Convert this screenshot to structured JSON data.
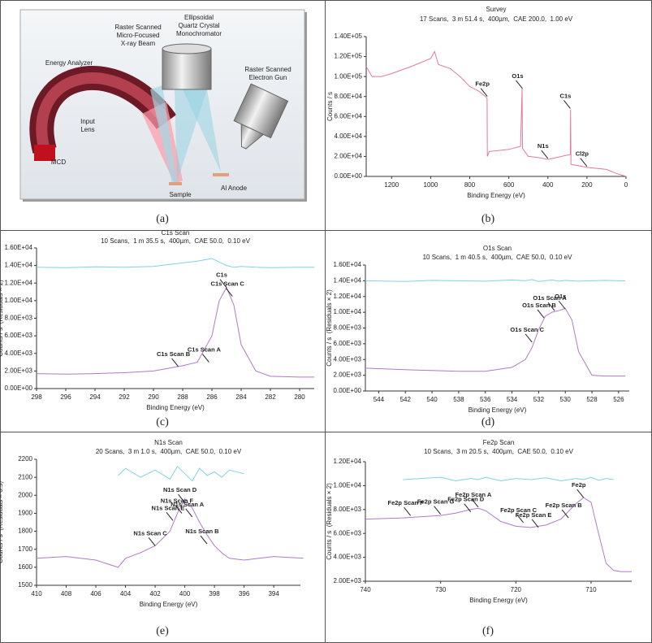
{
  "diagram": {
    "labels": [
      {
        "lines": [
          "Raster Scanned",
          "Micro-Focused",
          "X-ray Beam"
        ]
      },
      {
        "lines": [
          "Ellipsoidal",
          "Quartz Crystal",
          "Monochromator"
        ]
      },
      {
        "lines": [
          "Energy Analyzer"
        ]
      },
      {
        "lines": [
          "Raster Scanned",
          "Electron Gun"
        ]
      },
      {
        "lines": [
          "Input",
          "Lens"
        ]
      },
      {
        "lines": [
          "MCD"
        ]
      },
      {
        "lines": [
          "Sample"
        ]
      },
      {
        "lines": [
          "Al Anode"
        ]
      }
    ]
  },
  "panel_labels": [
    "(a)",
    "(b)",
    "(c)",
    "(d)",
    "(e)",
    "(f)"
  ],
  "chart_data": [
    {
      "type": "line",
      "title": "Survey",
      "subtitle": "17 Scans,  3 m 51.4 s,  400µm,  CAE 200.0,  1.00 eV",
      "x_label": "Binding Energy (eV)",
      "y_label": "Counts / s",
      "x": [
        1330,
        1300,
        1250,
        1200,
        1100,
        1000,
        980,
        960,
        900,
        850,
        800,
        750,
        720,
        711,
        710,
        700,
        650,
        600,
        540,
        532,
        530,
        500,
        450,
        400,
        285,
        284,
        282,
        250,
        200,
        100,
        50,
        0
      ],
      "series": [
        {
          "color": "#e07a9a",
          "values": [
            110000,
            100000,
            100000,
            103000,
            110000,
            118000,
            125000,
            112000,
            108000,
            100000,
            90000,
            85000,
            80000,
            78000,
            20000,
            25000,
            26000,
            27000,
            30000,
            88000,
            28000,
            20000,
            19000,
            17000,
            22000,
            67000,
            12000,
            11000,
            9000,
            7000,
            3000,
            0
          ]
        }
      ],
      "xlim": [
        1330,
        0
      ],
      "ylim": [
        0,
        140000
      ],
      "xticks": [
        1200,
        1000,
        800,
        600,
        400,
        200,
        0
      ],
      "yticks": [
        {
          "value": 0,
          "label": "0.00E+00"
        },
        {
          "value": 20000,
          "label": "2.00E+04"
        },
        {
          "value": 40000,
          "label": "4.00E+04"
        },
        {
          "value": 60000,
          "label": "6.00E+04"
        },
        {
          "value": 80000,
          "label": "8.00E+04"
        },
        {
          "value": 100000,
          "label": "1.00E+05"
        },
        {
          "value": 120000,
          "label": "1.20E+05"
        },
        {
          "value": 140000,
          "label": "1.40E+05"
        }
      ],
      "annotations": [
        {
          "label": "Fe2p",
          "x": 710,
          "y": 80000
        },
        {
          "label": "O1s",
          "x": 530,
          "y": 88000
        },
        {
          "label": "N1s",
          "x": 400,
          "y": 18000
        },
        {
          "label": "C1s",
          "x": 285,
          "y": 68000
        },
        {
          "label": "Cl2p",
          "x": 200,
          "y": 10000
        }
      ]
    },
    {
      "type": "line",
      "title": "C1s Scan",
      "subtitle": "10 Scans,  1 m 35.5 s,  400µm,  CAE 50.0,  0.10 eV",
      "x_label": "Binding Energy (eV)",
      "y_label": "Counts / s  (Residuals × 2)",
      "x": [
        298,
        296,
        294,
        292,
        290,
        289,
        288,
        287,
        286,
        285.5,
        285,
        284.5,
        284,
        283,
        282,
        280,
        279
      ],
      "series": [
        {
          "color": "#b07ac8",
          "values": [
            1700,
            1650,
            1700,
            1800,
            2000,
            2300,
            2600,
            3000,
            6000,
            10000,
            11500,
            9500,
            5000,
            2000,
            1400,
            1300,
            1300
          ]
        },
        {
          "color": "#7fd3e0",
          "values": [
            13800,
            13750,
            13850,
            13800,
            13900,
            14100,
            14300,
            14500,
            14800,
            14400,
            14000,
            13800,
            13900,
            13800,
            13750,
            13800,
            13800
          ]
        }
      ],
      "xlim": [
        298,
        279
      ],
      "ylim": [
        0,
        16000
      ],
      "xticks": [
        298,
        296,
        294,
        292,
        290,
        288,
        286,
        284,
        282,
        280
      ],
      "yticks": [
        {
          "value": 0,
          "label": "0.00E+00"
        },
        {
          "value": 2000,
          "label": "2.00E+03"
        },
        {
          "value": 4000,
          "label": "4.00E+03"
        },
        {
          "value": 6000,
          "label": "6.00E+03"
        },
        {
          "value": 8000,
          "label": "8.00E+03"
        },
        {
          "value": 10000,
          "label": "1.00E+04"
        },
        {
          "value": 12000,
          "label": "1.20E+04"
        },
        {
          "value": 14000,
          "label": "1.40E+04"
        },
        {
          "value": 16000,
          "label": "1.60E+04"
        }
      ],
      "annotations": [
        {
          "label": "C1s",
          "x": 285,
          "y": 11500
        },
        {
          "label": "C1s Scan C",
          "x": 284.6,
          "y": 10500
        },
        {
          "label": "C1s Scan A",
          "x": 286.2,
          "y": 3000
        },
        {
          "label": "C1s Scan B",
          "x": 288.3,
          "y": 2500
        }
      ]
    },
    {
      "type": "line",
      "title": "O1s Scan",
      "subtitle": "10 Scans,  1 m 40.5 s,  400µm,  CAE 50.0,  0.10 eV",
      "x_label": "Binding Energy (eV)",
      "y_label": "Counts / s  (Residuals × 2)",
      "x": [
        545,
        542,
        540,
        538,
        536,
        534,
        533,
        532.5,
        532,
        531.5,
        531,
        530.5,
        530,
        529.5,
        529,
        528,
        527,
        526,
        525.5
      ],
      "series": [
        {
          "color": "#b07ac8",
          "values": [
            2900,
            2700,
            2600,
            2500,
            2500,
            3000,
            4000,
            5500,
            7800,
            9500,
            10000,
            10200,
            10500,
            9000,
            5000,
            2000,
            1900,
            1900,
            1900
          ]
        },
        {
          "color": "#7fd3e0",
          "values": [
            14000,
            13900,
            14050,
            14000,
            13950,
            14100,
            14000,
            14150,
            13900,
            14000,
            14100,
            13950,
            14050,
            14000,
            13950,
            14000,
            14050,
            14000,
            14000
          ]
        }
      ],
      "xlim": [
        545,
        525.2
      ],
      "ylim": [
        0,
        16000
      ],
      "xticks": [
        544,
        542,
        540,
        538,
        536,
        534,
        532,
        530,
        528,
        526
      ],
      "yticks": [
        {
          "value": 0,
          "label": "0.00E+00"
        },
        {
          "value": 2000,
          "label": "2.00E+03"
        },
        {
          "value": 4000,
          "label": "4.00E+03"
        },
        {
          "value": 6000,
          "label": "6.00E+03"
        },
        {
          "value": 8000,
          "label": "8.00E+03"
        },
        {
          "value": 10000,
          "label": "1.00E+04"
        },
        {
          "value": 12000,
          "label": "1.20E+04"
        },
        {
          "value": 14000,
          "label": "1.40E+04"
        },
        {
          "value": 16000,
          "label": "1.60E+04"
        }
      ],
      "annotations": [
        {
          "label": "O1s",
          "x": 530,
          "y": 10400
        },
        {
          "label": "O1s Scan A",
          "x": 530.8,
          "y": 10200
        },
        {
          "label": "O1s Scan B",
          "x": 531.6,
          "y": 9300
        },
        {
          "label": "O1s Scan C",
          "x": 532.5,
          "y": 6200
        }
      ]
    },
    {
      "type": "line",
      "title": "N1s Scan",
      "subtitle": "20 Scans,  3 m 1.0 s,  400µm,  CAE 50.0,  0.10 eV",
      "x_label": "Binding Energy (eV)",
      "y_label": "Counts / s  (Residuals × 0.5)",
      "x": [
        410,
        408,
        406,
        404.5,
        404,
        403,
        402,
        401,
        400.5,
        400,
        399.5,
        399,
        398.5,
        398,
        397.5,
        397,
        396,
        394,
        392
      ],
      "series": [
        {
          "color": "#b07ac8",
          "values": [
            1650,
            1660,
            1640,
            1600,
            1650,
            1680,
            1720,
            1800,
            1900,
            1980,
            1930,
            1850,
            1780,
            1720,
            1680,
            1650,
            1640,
            1660,
            1650
          ]
        },
        {
          "color": "#7fd3e0",
          "values": [
            null,
            null,
            null,
            2110,
            2150,
            2100,
            2140,
            2090,
            2160,
            2120,
            2080,
            2150,
            2110,
            2130,
            2100,
            2140,
            2120,
            null,
            null
          ]
        }
      ],
      "xlim": [
        410,
        392.2
      ],
      "ylim": [
        1500,
        2200
      ],
      "xticks": [
        410,
        408,
        406,
        404,
        402,
        400,
        398,
        396,
        394
      ],
      "yticks": [
        1500,
        1600,
        1700,
        1800,
        1900,
        2000,
        2100,
        2200
      ],
      "annotations": [
        {
          "label": "N1s Scan D",
          "x": 400,
          "y": 1960
        },
        {
          "label": "N1s Scan A",
          "x": 399.5,
          "y": 1880
        },
        {
          "label": "N1s Scan E",
          "x": 400.8,
          "y": 1860
        },
        {
          "label": "N1s Scan F",
          "x": 400.2,
          "y": 1900
        },
        {
          "label": "N1s Scan C",
          "x": 402,
          "y": 1720
        },
        {
          "label": "N1s Scan B",
          "x": 398.5,
          "y": 1730
        }
      ]
    },
    {
      "type": "line",
      "title": "Fe2p Scan",
      "subtitle": "10 Scans,  3 m 20.5 s,  400µm,  CAE 50.0,  0.10 eV",
      "x_label": "Binding Energy (eV)",
      "y_label": "Counts / s  (Residuals × 2)",
      "x": [
        740,
        735,
        730,
        728,
        726,
        725,
        724,
        722,
        720,
        718,
        716,
        714,
        712,
        711,
        710,
        709,
        708,
        707,
        706,
        704.6
      ],
      "series": [
        {
          "color": "#b07ac8",
          "values": [
            7200,
            7300,
            7500,
            7700,
            8000,
            8100,
            7900,
            7000,
            6600,
            6500,
            6700,
            7200,
            8500,
            9000,
            8600,
            6000,
            3500,
            2900,
            2800,
            2800
          ]
        },
        {
          "color": "#7fd3e0",
          "values": [
            null,
            10500,
            10700,
            10400,
            10600,
            10500,
            10700,
            10400,
            10600,
            10500,
            10650,
            10400,
            10600,
            10500,
            10700,
            10450,
            10600,
            10500,
            null,
            null
          ]
        }
      ],
      "xlim": [
        740,
        704.6
      ],
      "ylim": [
        2000,
        12000
      ],
      "xticks": [
        740,
        730,
        720,
        710
      ],
      "yticks": [
        {
          "value": 2000,
          "label": "2.00E+03"
        },
        {
          "value": 4000,
          "label": "4.00E+03"
        },
        {
          "value": 6000,
          "label": "6.00E+03"
        },
        {
          "value": 8000,
          "label": "8.00E+03"
        },
        {
          "value": 10000,
          "label": "1.00E+04"
        },
        {
          "value": 12000,
          "label": "1.20E+04"
        }
      ],
      "annotations": [
        {
          "label": "Fe2p",
          "x": 711,
          "y": 9000
        },
        {
          "label": "Fe2p Scan B",
          "x": 713,
          "y": 7300
        },
        {
          "label": "Fe2p Scan E",
          "x": 717,
          "y": 6500
        },
        {
          "label": "Fe2p Scan C",
          "x": 719,
          "y": 6900
        },
        {
          "label": "Fe2p Scan A",
          "x": 725,
          "y": 8200
        },
        {
          "label": "Fe2p Scan D",
          "x": 726,
          "y": 7800
        },
        {
          "label": "Fe2p Scan G",
          "x": 730,
          "y": 7600
        },
        {
          "label": "Fe2p Scan F",
          "x": 734,
          "y": 7500
        }
      ]
    }
  ]
}
